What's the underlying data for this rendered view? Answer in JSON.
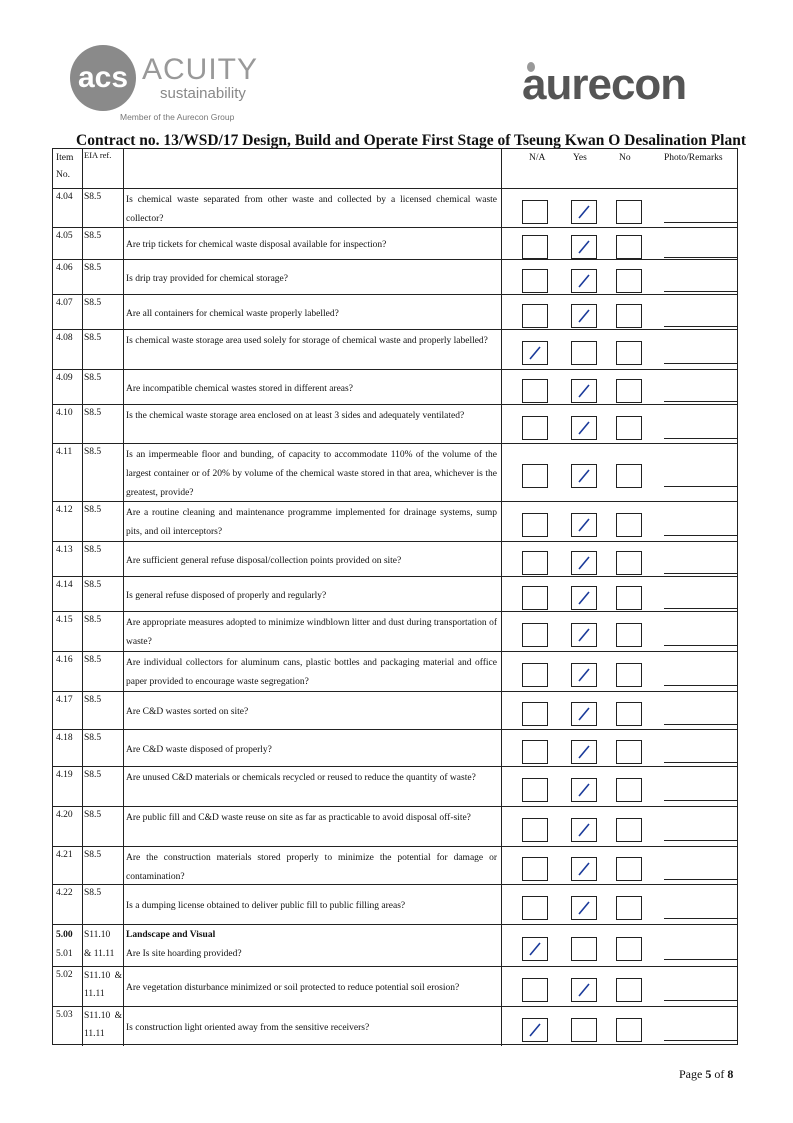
{
  "header": {
    "acuity_logo": {
      "mark": "acs",
      "name": "ACUITY",
      "tagline": "sustainability",
      "member": "Member of the Aurecon Group"
    },
    "aurecon_logo": "aurecon",
    "title": "Contract no.  13/WSD/17 Design, Build and Operate First Stage of Tseung Kwan O Desalination Plant"
  },
  "table": {
    "columns": {
      "item": "Item No.",
      "eia": "EIA ref.",
      "na": "N/A",
      "yes": "Yes",
      "no": "No",
      "remarks": "Photo/Remarks"
    },
    "rows": [
      {
        "item": "4.04",
        "eia": "S8.5",
        "desc": "Is chemical waste separated from other waste and collected by a licensed chemical waste collector?",
        "checked": "yes"
      },
      {
        "item": "4.05",
        "eia": "S8.5",
        "desc": "Are trip tickets for chemical waste disposal available for inspection?",
        "checked": "yes"
      },
      {
        "item": "4.06",
        "eia": "S8.5",
        "desc": "Is drip tray provided for chemical storage?",
        "checked": "yes"
      },
      {
        "item": "4.07",
        "eia": "S8.5",
        "desc": "Are all containers for chemical waste properly labelled?",
        "checked": "yes"
      },
      {
        "item": "4.08",
        "eia": "S8.5",
        "desc": "Is chemical waste storage area used solely for storage of chemical waste and properly labelled?",
        "checked": "na"
      },
      {
        "item": "4.09",
        "eia": "S8.5",
        "desc": "Are incompatible chemical wastes stored in different areas?",
        "checked": "yes"
      },
      {
        "item": "4.10",
        "eia": "S8.5",
        "desc": "Is the chemical waste storage area enclosed on at least 3 sides and adequately ventilated?",
        "checked": "yes"
      },
      {
        "item": "4.11",
        "eia": "S8.5",
        "desc": "Is an impermeable floor and bunding, of capacity to accommodate 110% of the volume of the largest container or of 20% by volume of the chemical waste stored in that area, whichever is the greatest, provide?",
        "checked": "yes"
      },
      {
        "item": "4.12",
        "eia": "S8.5",
        "desc": "Are a routine cleaning and maintenance programme implemented for drainage systems, sump pits, and oil interceptors?",
        "checked": "yes"
      },
      {
        "item": "4.13",
        "eia": "S8.5",
        "desc": "Are sufficient general refuse disposal/collection points provided on site?",
        "checked": "yes"
      },
      {
        "item": "4.14",
        "eia": "S8.5",
        "desc": "Is general refuse disposed of properly and regularly?",
        "checked": "yes"
      },
      {
        "item": "4.15",
        "eia": "S8.5",
        "desc": "Are appropriate measures adopted to minimize windblown litter and dust during transportation of waste?",
        "checked": "yes"
      },
      {
        "item": "4.16",
        "eia": "S8.5",
        "desc": "Are individual collectors for aluminum cans, plastic bottles and packaging material and office paper provided to encourage waste segregation?",
        "checked": "yes"
      },
      {
        "item": "4.17",
        "eia": "S8.5",
        "desc": "Are C&D wastes sorted on site?",
        "checked": "yes"
      },
      {
        "item": "4.18",
        "eia": "S8.5",
        "desc": "Are C&D waste disposed of properly?",
        "checked": "yes"
      },
      {
        "item": "4.19",
        "eia": "S8.5",
        "desc": "Are unused C&D materials or chemicals recycled or reused to reduce the quantity of waste?",
        "checked": "yes"
      },
      {
        "item": "4.20",
        "eia": "S8.5",
        "desc": "Are public fill and C&D waste reuse on site as far as practicable to avoid disposal off-site?",
        "checked": "yes"
      },
      {
        "item": "4.21",
        "eia": "S8.5",
        "desc": "Are the construction materials stored properly to minimize the potential for damage or contamination?",
        "checked": "yes"
      },
      {
        "item": "4.22",
        "eia": "S8.5",
        "desc": "Is a dumping license obtained to deliver public fill to public filling areas?",
        "checked": "yes"
      },
      {
        "item": "5.00",
        "item2": "5.01",
        "eia": "S11.10",
        "eia2": "& 11.11",
        "section": "Landscape and Visual",
        "desc": "Are Is site hoarding provided?",
        "checked": "na"
      },
      {
        "item": "5.02",
        "eia": "S11.10 & 11.11",
        "desc": "Are vegetation disturbance minimized or soil protected to reduce potential soil erosion?",
        "checked": "yes"
      },
      {
        "item": "5.03",
        "eia": "S11.10 & 11.11",
        "desc": "Is construction light oriented away from the sensitive receivers?",
        "checked": "na"
      }
    ]
  },
  "footer": {
    "page_label": "Page ",
    "page": "5",
    "of_label": " of ",
    "total": "8"
  },
  "colors": {
    "ink": "#111111",
    "tick": "#1a3a9a",
    "logo_gray": "#8a8a8a"
  }
}
